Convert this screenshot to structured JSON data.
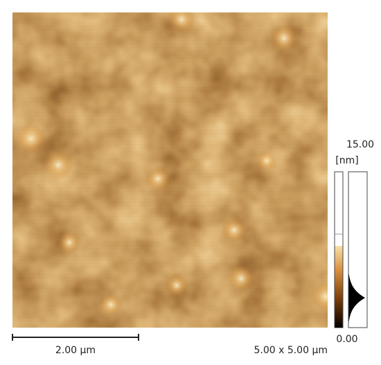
{
  "colorbar": {
    "max": "15.00",
    "unit": "[nm]",
    "min": "0.00"
  },
  "scale_bar": {
    "label": "2.00 µm"
  },
  "scan_size": "5.00 x 5.00 µm"
}
